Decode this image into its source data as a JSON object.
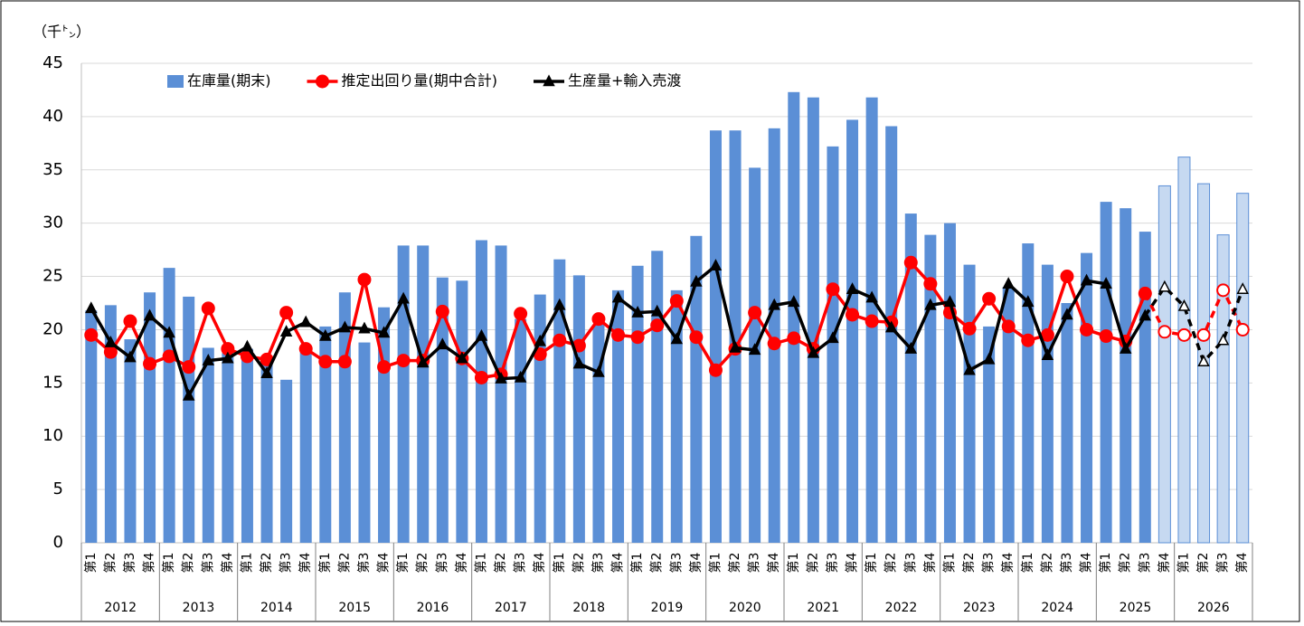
{
  "chart_data": {
    "type": "combo",
    "y_label": "（千㌧）",
    "categories": [
      "第1",
      "第2",
      "第3",
      "第4",
      "第1",
      "第2",
      "第3",
      "第4",
      "第1",
      "第2",
      "第3",
      "第4",
      "第1",
      "第2",
      "第3",
      "第4",
      "第1",
      "第2",
      "第3",
      "第4",
      "第1",
      "第2",
      "第3",
      "第4",
      "第1",
      "第2",
      "第3",
      "第4",
      "第1",
      "第2",
      "第3",
      "第4",
      "第1",
      "第2",
      "第3",
      "第4",
      "第1",
      "第2",
      "第3",
      "第4",
      "第1",
      "第2",
      "第3",
      "第4",
      "第1",
      "第2",
      "第3",
      "第4",
      "第1",
      "第2",
      "第3",
      "第4",
      "第1",
      "第2",
      "第3",
      "第4",
      "第1",
      "第2",
      "第3",
      "第4"
    ],
    "years": [
      "2012",
      "2013",
      "2014",
      "2015",
      "2016",
      "2017",
      "2018",
      "2019",
      "2020",
      "2021",
      "2022",
      "2023",
      "2024",
      "2025",
      "2026"
    ],
    "forecast_start": 55,
    "ylim": [
      0,
      45
    ],
    "yticks": [
      0,
      5,
      10,
      15,
      20,
      25,
      30,
      35,
      40,
      45
    ],
    "grid": true,
    "series": [
      {
        "name": "在庫量(期末)",
        "type": "bar",
        "color": "#5b8fd6",
        "forecast_color": "#c6d9f1",
        "values": [
          21.8,
          22.3,
          19.1,
          23.5,
          25.8,
          23.1,
          18.3,
          17.8,
          18.2,
          17.0,
          15.3,
          18.5,
          20.3,
          23.5,
          18.8,
          22.1,
          27.9,
          27.9,
          24.9,
          24.6,
          28.4,
          27.9,
          21.0,
          23.3,
          26.6,
          25.1,
          20.5,
          23.7,
          26.0,
          27.4,
          23.7,
          28.8,
          38.7,
          38.7,
          35.2,
          38.9,
          42.3,
          41.8,
          37.2,
          39.7,
          41.8,
          39.1,
          30.9,
          28.9,
          30.0,
          26.1,
          20.3,
          24.0,
          28.1,
          26.1,
          22.5,
          27.2,
          32.0,
          31.4,
          29.2,
          33.5,
          36.2,
          33.7,
          28.9,
          32.8
        ]
      },
      {
        "name": "推定出回り量(期中合計)",
        "type": "line",
        "marker": "circle",
        "color": "#ff0000",
        "values": [
          19.5,
          17.9,
          20.8,
          16.8,
          17.5,
          16.5,
          22.0,
          18.2,
          17.5,
          17.2,
          21.6,
          18.2,
          17.0,
          17.0,
          24.7,
          16.5,
          17.1,
          17.1,
          21.7,
          17.3,
          15.5,
          15.8,
          21.5,
          17.7,
          19.0,
          18.5,
          21.0,
          19.5,
          19.3,
          20.4,
          22.7,
          19.3,
          16.2,
          18.2,
          21.6,
          18.7,
          19.2,
          18.2,
          23.8,
          21.4,
          20.8,
          20.7,
          26.3,
          24.3,
          21.6,
          20.1,
          22.9,
          20.3,
          19.0,
          19.5,
          25.0,
          20.0,
          19.4,
          18.9,
          23.4,
          19.8,
          19.5,
          19.5,
          23.7,
          20.0
        ]
      },
      {
        "name": "生産量+輸入売渡",
        "type": "line",
        "marker": "triangle",
        "color": "#000000",
        "values": [
          22.0,
          18.8,
          17.4,
          21.3,
          19.7,
          13.8,
          17.1,
          17.3,
          18.4,
          15.9,
          19.8,
          20.7,
          19.4,
          20.2,
          20.1,
          19.7,
          22.9,
          16.9,
          18.6,
          17.3,
          19.4,
          15.4,
          15.5,
          18.9,
          22.3,
          16.8,
          16.0,
          23.0,
          21.6,
          21.7,
          19.1,
          24.5,
          26.0,
          18.3,
          18.1,
          22.3,
          22.6,
          17.8,
          19.2,
          23.8,
          23.0,
          20.2,
          18.2,
          22.3,
          22.6,
          16.2,
          17.2,
          24.3,
          22.6,
          17.6,
          21.4,
          24.6,
          24.3,
          18.2,
          21.3,
          24.0,
          22.2,
          17.0,
          19.0,
          23.8
        ]
      }
    ]
  }
}
